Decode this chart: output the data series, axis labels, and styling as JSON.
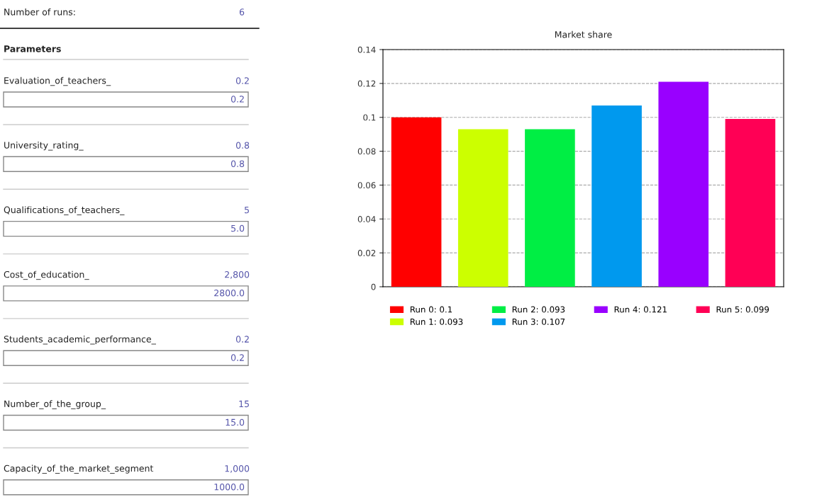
{
  "chart_data": [
    {
      "type": "other",
      "annotations": [
        "Number of runs:",
        "6",
        "Parameters",
        "Evaluation_of_teachers_",
        "0.2",
        "0.2",
        "University_rating_",
        "0.8",
        "0.8",
        "Qualifications_of_teachers_",
        "5",
        "5.0",
        "Cost_of_education_",
        "2,800",
        "2800.0",
        "Students_academic_performance_",
        "0.2",
        "0.2",
        "Number_of_the_group_",
        "15",
        "15.0",
        "Capacity_of_the_market_segment",
        "1,000",
        "1000.0"
      ]
    },
    {
      "type": "bar",
      "title": "Market share",
      "categories": [
        null,
        null,
        null,
        null,
        null,
        null
      ],
      "series": [
        {
          "name": "Run 0: 0.1",
          "color": "#ff0000",
          "values": [
            0.1,
            null,
            null,
            null,
            null,
            null
          ]
        },
        {
          "name": "Run 1: 0.093",
          "color": "#ccff00",
          "values": [
            null,
            0.093,
            null,
            null,
            null,
            null
          ]
        },
        {
          "name": "Run 2: 0.093",
          "color": "#00ee44",
          "values": [
            null,
            null,
            0.093,
            null,
            null,
            null
          ]
        },
        {
          "name": "Run 3: 0.107",
          "color": "#0099ee",
          "values": [
            null,
            null,
            null,
            0.107,
            null,
            null
          ]
        },
        {
          "name": "Run 4: 0.121",
          "color": "#9900ff",
          "values": [
            null,
            null,
            null,
            null,
            0.121,
            null
          ]
        },
        {
          "name": "Run 5: 0.099",
          "color": "#ff0055",
          "values": [
            null,
            null,
            null,
            null,
            null,
            0.099
          ]
        }
      ],
      "ylim": [
        0,
        0.14
      ],
      "yticks": [
        0,
        0.02,
        0.04,
        0.06,
        0.08,
        0.1,
        0.12,
        0.14
      ],
      "grid": "y",
      "line_style": "dashed",
      "legend": "bottom"
    }
  ]
}
